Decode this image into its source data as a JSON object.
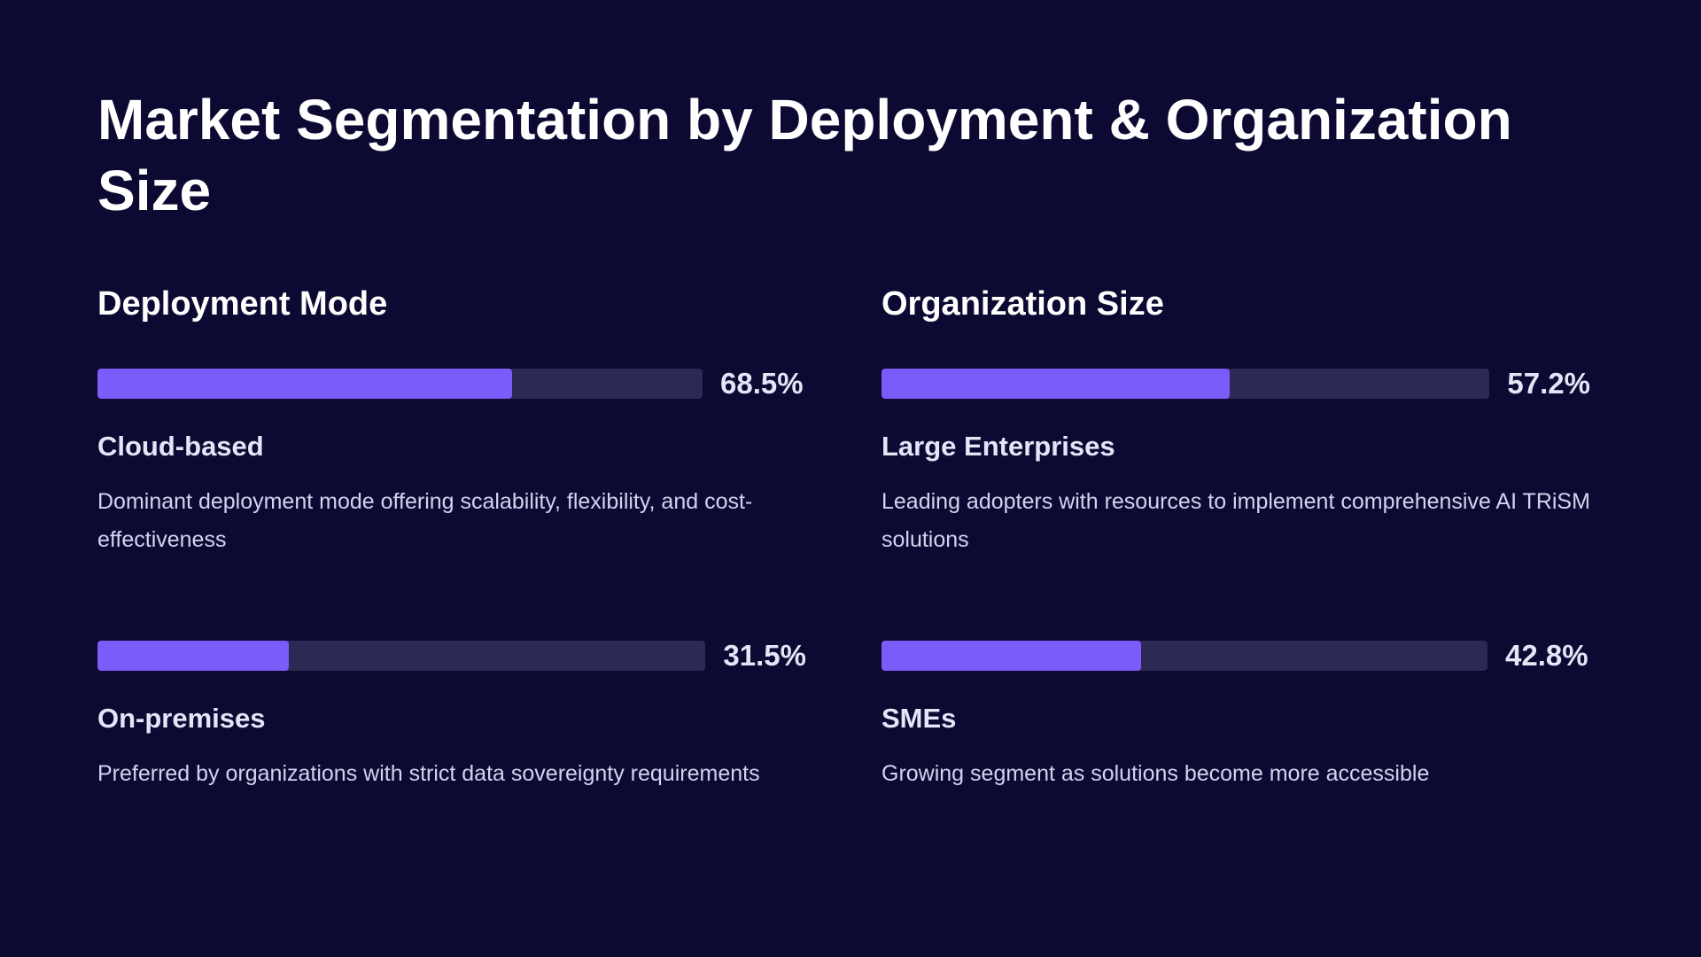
{
  "title": "Market Segmentation by Deployment & Organization Size",
  "colors": {
    "background": "#0c0a32",
    "bar_fill": "#7b5cf8",
    "bar_track": "#2c2a55"
  },
  "deployment": {
    "heading": "Deployment Mode",
    "items": [
      {
        "value": 68.5,
        "value_label": "68.5%",
        "name": "Cloud-based",
        "description": "Dominant deployment mode offering scalability, flexibility, and cost-effectiveness"
      },
      {
        "value": 31.5,
        "value_label": "31.5%",
        "name": "On-premises",
        "description": "Preferred by organizations with strict data sovereignty requirements"
      }
    ]
  },
  "organization": {
    "heading": "Organization Size",
    "items": [
      {
        "value": 57.2,
        "value_label": "57.2%",
        "name": "Large Enterprises",
        "description": "Leading adopters with resources to implement comprehensive AI TRiSM solutions"
      },
      {
        "value": 42.8,
        "value_label": "42.8%",
        "name": "SMEs",
        "description": "Growing segment as solutions become more accessible"
      }
    ]
  }
}
